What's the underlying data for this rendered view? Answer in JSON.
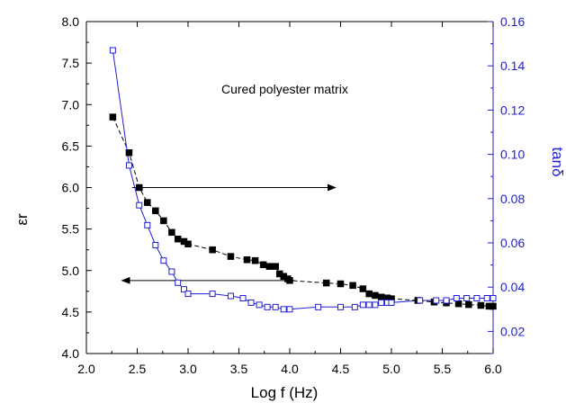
{
  "chart_data": {
    "type": "scatter",
    "title": "",
    "xlabel": "Log f (Hz)",
    "ylabel_left": "εr",
    "ylabel_right": "tanδ",
    "xlim": [
      2.0,
      6.0
    ],
    "ylim_left": [
      4.0,
      8.0
    ],
    "ylim_right": [
      0.01,
      0.16
    ],
    "x_ticks": [
      "2.0",
      "2.5",
      "3.0",
      "3.5",
      "4.0",
      "4.5",
      "5.0",
      "5.5",
      "6.0"
    ],
    "y_left_ticks": [
      "4.0",
      "4.5",
      "5.0",
      "5.5",
      "6.0",
      "6.5",
      "7.0",
      "7.5",
      "8.0"
    ],
    "y_right_ticks": [
      "0.02",
      "0.04",
      "0.06",
      "0.08",
      "0.10",
      "0.12",
      "0.14",
      "0.16"
    ],
    "annotation": "Cured polyester matrix",
    "grid": false,
    "series": [
      {
        "axis": "left",
        "marker": "filled-square",
        "color": "#000000",
        "x": [
          2.26,
          2.42,
          2.52,
          2.6,
          2.68,
          2.76,
          2.84,
          2.9,
          2.96,
          3.0,
          3.24,
          3.42,
          3.58,
          3.66,
          3.74,
          3.8,
          3.86,
          3.9,
          3.94,
          3.98,
          4.0,
          4.36,
          4.5,
          4.62,
          4.72,
          4.78,
          4.84,
          4.9,
          4.96,
          5.0,
          5.26,
          5.42,
          5.54,
          5.66,
          5.76,
          5.88,
          5.96,
          6.0
        ],
        "y": [
          6.85,
          6.42,
          6.0,
          5.82,
          5.72,
          5.6,
          5.46,
          5.38,
          5.35,
          5.32,
          5.25,
          5.17,
          5.13,
          5.12,
          5.07,
          5.05,
          5.05,
          4.96,
          4.93,
          4.9,
          4.88,
          4.85,
          4.84,
          4.82,
          4.78,
          4.72,
          4.7,
          4.68,
          4.67,
          4.66,
          4.64,
          4.62,
          4.61,
          4.6,
          4.59,
          4.58,
          4.57,
          4.57
        ]
      },
      {
        "axis": "right",
        "marker": "open-square",
        "color": "#1f1fd1",
        "x": [
          2.26,
          2.42,
          2.52,
          2.6,
          2.68,
          2.76,
          2.84,
          2.9,
          2.96,
          3.0,
          3.24,
          3.42,
          3.54,
          3.62,
          3.7,
          3.78,
          3.86,
          3.94,
          4.0,
          4.28,
          4.5,
          4.64,
          4.72,
          4.78,
          4.84,
          4.9,
          4.96,
          5.0,
          5.28,
          5.44,
          5.54,
          5.64,
          5.74,
          5.84,
          5.94,
          6.0
        ],
        "y": [
          0.147,
          0.095,
          0.077,
          0.068,
          0.059,
          0.052,
          0.047,
          0.042,
          0.039,
          0.037,
          0.037,
          0.036,
          0.035,
          0.033,
          0.032,
          0.031,
          0.031,
          0.03,
          0.03,
          0.031,
          0.031,
          0.031,
          0.032,
          0.032,
          0.032,
          0.033,
          0.033,
          0.033,
          0.034,
          0.034,
          0.034,
          0.035,
          0.035,
          0.035,
          0.035,
          0.035
        ]
      }
    ],
    "arrows": [
      {
        "direction": "right",
        "axis": "left",
        "from_x": 2.45,
        "to_x": 4.45,
        "y": 6.0
      },
      {
        "direction": "left",
        "axis": "left",
        "from_x": 4.05,
        "to_x": 2.35,
        "y": 4.88
      }
    ]
  }
}
